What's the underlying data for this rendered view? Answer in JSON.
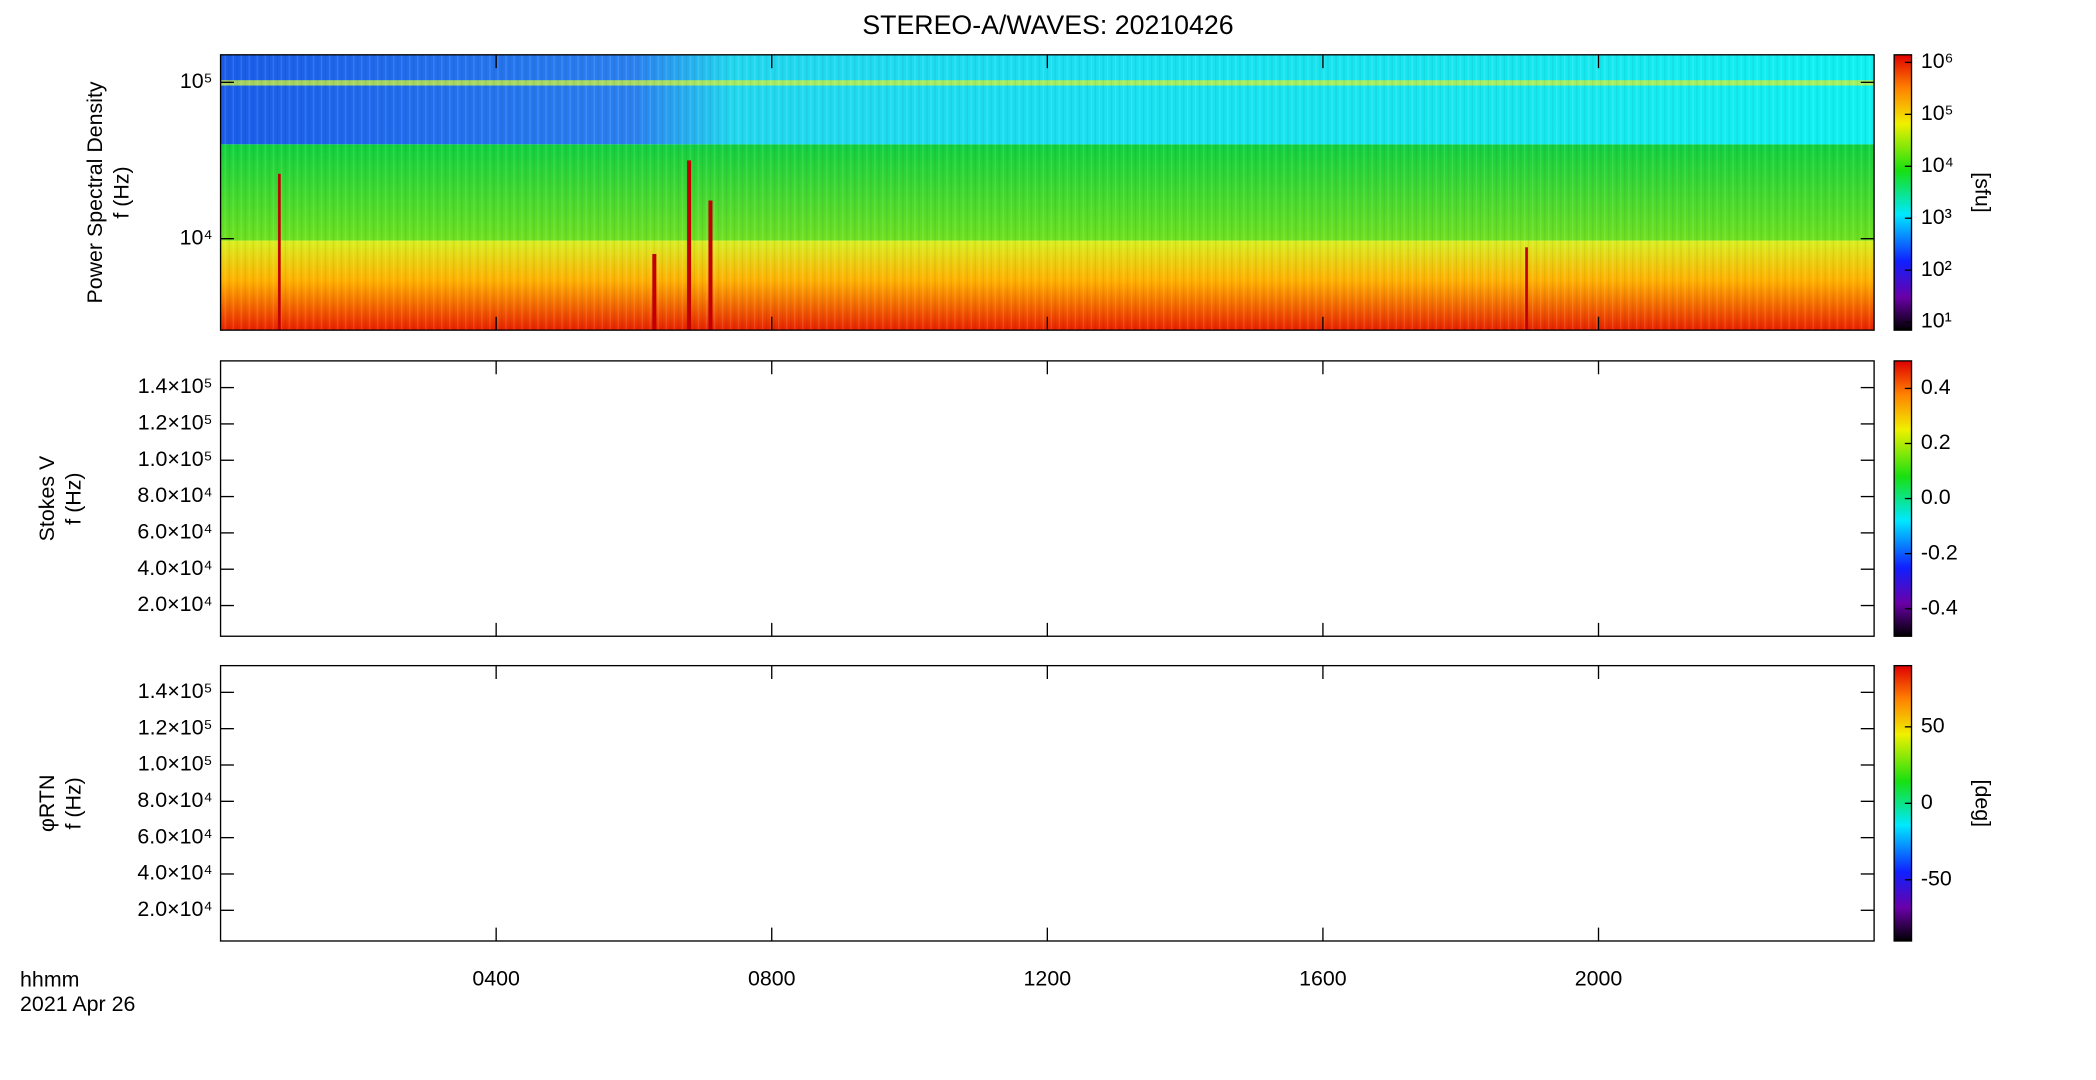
{
  "title": "STEREO-A/WAVES: 20210426",
  "x_axis": {
    "xlim": [
      0,
      24
    ],
    "xticks": [
      {
        "value": 4,
        "label": "0400"
      },
      {
        "value": 8,
        "label": "0800"
      },
      {
        "value": 12,
        "label": "1200"
      },
      {
        "value": 16,
        "label": "1600"
      },
      {
        "value": 20,
        "label": "2000"
      }
    ],
    "unit_label": "hhmm",
    "date_label": "2021 Apr 26"
  },
  "chart_data": [
    {
      "type": "heatmap",
      "ylabel": [
        "Power Spectral Density",
        "f (Hz)"
      ],
      "log_y": true,
      "ylim": [
        2600,
        150000
      ],
      "yticks": [
        {
          "value": 10000,
          "label": "10⁴"
        },
        {
          "value": 100000,
          "label": "10⁵"
        }
      ],
      "colorbar": {
        "log": true,
        "clim": [
          7,
          1400000
        ],
        "label": "[sfu]",
        "ticks": [
          {
            "value": 10,
            "label": "10¹"
          },
          {
            "value": 100,
            "label": "10²"
          },
          {
            "value": 1000,
            "label": "10³"
          },
          {
            "value": 10000,
            "label": "10⁴"
          },
          {
            "value": 100000,
            "label": "10⁵"
          },
          {
            "value": 1000000,
            "label": "10⁶"
          }
        ]
      }
    },
    {
      "type": "heatmap",
      "ylabel": [
        "Stokes V",
        "f (Hz)"
      ],
      "log_y": false,
      "ylim": [
        3100,
        154700
      ],
      "yticks": [
        {
          "value": 20000,
          "label": "2.0×10⁴"
        },
        {
          "value": 40000,
          "label": "4.0×10⁴"
        },
        {
          "value": 60000,
          "label": "6.0×10⁴"
        },
        {
          "value": 80000,
          "label": "8.0×10⁴"
        },
        {
          "value": 100000,
          "label": "1.0×10⁵"
        },
        {
          "value": 120000,
          "label": "1.2×10⁵"
        },
        {
          "value": 140000,
          "label": "1.4×10⁵"
        }
      ],
      "colorbar": {
        "log": false,
        "clim": [
          -0.5,
          0.5
        ],
        "ticks": [
          -0.4,
          -0.2,
          {
            "value": 0,
            "label": "0.0"
          },
          0.2,
          0.4
        ]
      }
    },
    {
      "type": "heatmap",
      "ylabel": [
        "φRTN",
        "f (Hz)"
      ],
      "log_y": false,
      "ylim": [
        3100,
        154700
      ],
      "yticks": [
        {
          "value": 20000,
          "label": "2.0×10⁴"
        },
        {
          "value": 40000,
          "label": "4.0×10⁴"
        },
        {
          "value": 60000,
          "label": "6.0×10⁴"
        },
        {
          "value": 80000,
          "label": "8.0×10⁴"
        },
        {
          "value": 100000,
          "label": "1.0×10⁵"
        },
        {
          "value": 120000,
          "label": "1.2×10⁵"
        },
        {
          "value": 140000,
          "label": "1.4×10⁵"
        }
      ],
      "colorbar": {
        "log": false,
        "clim": [
          -90,
          90
        ],
        "label": "[deg]",
        "ticks": [
          -50,
          0,
          50
        ]
      }
    }
  ]
}
